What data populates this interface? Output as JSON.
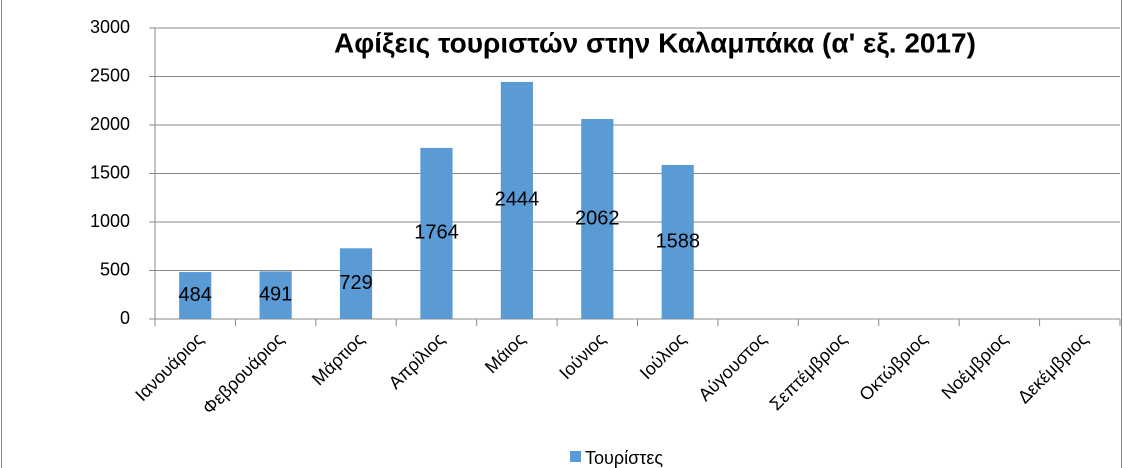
{
  "chart_data": {
    "type": "bar",
    "title": "Αφίξεις τουριστών στην Καλαμπάκα (α' εξ. 2017)",
    "categories": [
      "Ιανουάριος",
      "Φεβρουάριος",
      "Μάρτιος",
      "Απρίλιος",
      "Μάιος",
      "Ιούνιος",
      "Ιούλιος",
      "Αύγουστος",
      "Σεπτέμβριος",
      "Οκτώβριος",
      "Νοέμβριος",
      "Δεκέμβριος"
    ],
    "series": [
      {
        "name": "Τουρίστες",
        "color": "#5b9bd5",
        "values": [
          484,
          491,
          729,
          1764,
          2444,
          2062,
          1588,
          null,
          null,
          null,
          null,
          null
        ]
      }
    ],
    "ylim": [
      0,
      3000
    ],
    "yticks": [
      0,
      500,
      1000,
      1500,
      2000,
      2500,
      3000
    ],
    "grid": true,
    "legend": "bottom"
  }
}
